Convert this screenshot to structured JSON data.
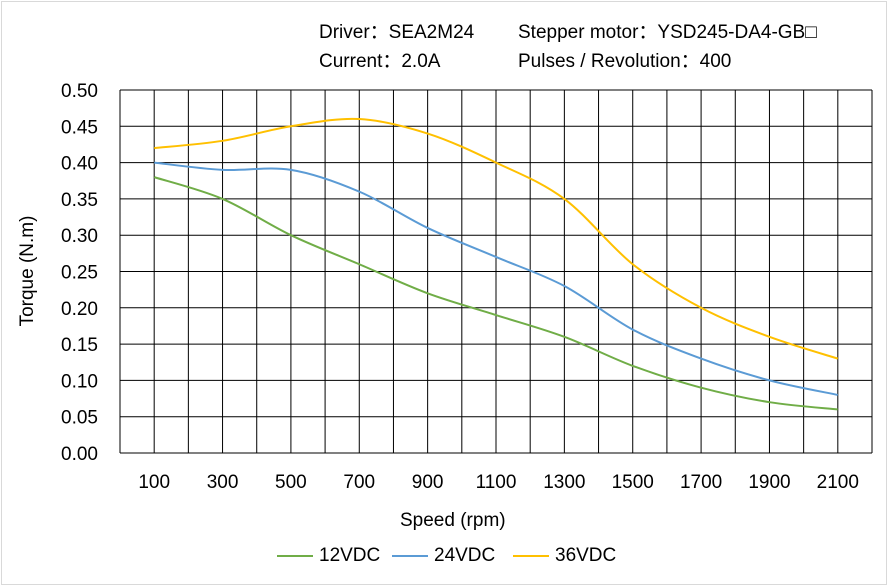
{
  "header": {
    "driver": "Driver：SEA2M24",
    "motor": "Stepper motor：YSD245-DA4-GB□",
    "current": "Current：2.0A",
    "pulses": "Pulses / Revolution：400"
  },
  "chart_data": {
    "type": "line",
    "title": "",
    "xlabel": "Speed  (rpm)",
    "ylabel": "Torque (N.m)",
    "xlim": [
      0,
      2200
    ],
    "ylim": [
      0,
      0.5
    ],
    "x_ticks": [
      "100",
      "300",
      "500",
      "700",
      "900",
      "1100",
      "1300",
      "1500",
      "1700",
      "1900",
      "2100"
    ],
    "y_ticks": [
      "0.00",
      "0.05",
      "0.10",
      "0.15",
      "0.20",
      "0.25",
      "0.30",
      "0.35",
      "0.40",
      "0.45",
      "0.50"
    ],
    "grid": true,
    "legend_position": "bottom",
    "x": [
      100,
      300,
      500,
      700,
      900,
      1100,
      1300,
      1500,
      1700,
      1900,
      2100
    ],
    "series": [
      {
        "name": "12VDC",
        "color": "#70ad47",
        "values": [
          0.38,
          0.35,
          0.3,
          0.26,
          0.22,
          0.19,
          0.16,
          0.12,
          0.09,
          0.07,
          0.06
        ]
      },
      {
        "name": "24VDC",
        "color": "#5b9bd5",
        "values": [
          0.4,
          0.39,
          0.39,
          0.36,
          0.31,
          0.27,
          0.23,
          0.17,
          0.13,
          0.1,
          0.08
        ]
      },
      {
        "name": "36VDC",
        "color": "#ffc000",
        "values": [
          0.42,
          0.43,
          0.45,
          0.46,
          0.44,
          0.4,
          0.35,
          0.26,
          0.2,
          0.16,
          0.13
        ]
      }
    ]
  }
}
